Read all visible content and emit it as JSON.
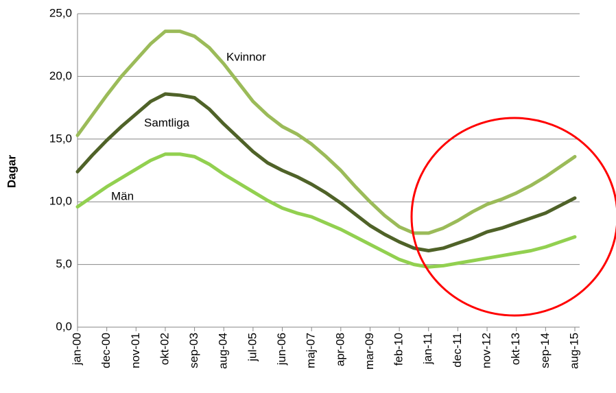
{
  "chart_data": {
    "type": "line",
    "ylabel": "Dagar",
    "categories": [
      "jan-00",
      null,
      "dec-00",
      null,
      "nov-01",
      null,
      "okt-02",
      null,
      "sep-03",
      null,
      "aug-04",
      null,
      "jul-05",
      null,
      "jun-06",
      null,
      "maj-07",
      null,
      "apr-08",
      null,
      "mar-09",
      null,
      "feb-10",
      null,
      "jan-11",
      null,
      "dec-11",
      null,
      "nov-12",
      null,
      "okt-13",
      null,
      "sep-14",
      null,
      "aug-15"
    ],
    "series": [
      {
        "name": "Kvinnor",
        "color": "#9bbb59",
        "values": [
          15.3,
          16.9,
          18.5,
          20.0,
          21.3,
          22.6,
          23.6,
          23.6,
          23.2,
          22.3,
          21.0,
          19.5,
          18.0,
          16.9,
          16.0,
          15.4,
          14.6,
          13.6,
          12.5,
          11.2,
          10.0,
          8.9,
          8.0,
          7.5,
          7.5,
          7.9,
          8.5,
          9.2,
          9.8,
          10.2,
          10.7,
          11.3,
          12.0,
          12.8,
          13.6
        ]
      },
      {
        "name": "Samtliga",
        "color": "#4f6228",
        "values": [
          12.4,
          13.7,
          14.9,
          16.0,
          17.0,
          18.0,
          18.6,
          18.5,
          18.3,
          17.4,
          16.2,
          15.1,
          14.0,
          13.1,
          12.5,
          12.0,
          11.4,
          10.7,
          9.9,
          9.0,
          8.1,
          7.4,
          6.8,
          6.3,
          6.1,
          6.3,
          6.7,
          7.1,
          7.6,
          7.9,
          8.3,
          8.7,
          9.1,
          9.7,
          10.3
        ]
      },
      {
        "name": "Män",
        "color": "#92d050",
        "values": [
          9.6,
          10.4,
          11.2,
          11.9,
          12.6,
          13.3,
          13.8,
          13.8,
          13.6,
          13.0,
          12.2,
          11.5,
          10.8,
          10.1,
          9.5,
          9.1,
          8.8,
          8.3,
          7.8,
          7.2,
          6.6,
          6.0,
          5.4,
          5.0,
          4.8,
          4.9,
          5.1,
          5.3,
          5.5,
          5.7,
          5.9,
          6.1,
          6.4,
          6.8,
          7.2
        ]
      }
    ],
    "ylim": [
      0,
      25
    ],
    "yticks": [
      {
        "value": 0,
        "label": "0,0"
      },
      {
        "value": 5,
        "label": "5,0"
      },
      {
        "value": 10,
        "label": "10,0"
      },
      {
        "value": 15,
        "label": "15,0"
      },
      {
        "value": 20,
        "label": "20,0"
      },
      {
        "value": 25,
        "label": "25,0"
      }
    ],
    "grid": true
  }
}
